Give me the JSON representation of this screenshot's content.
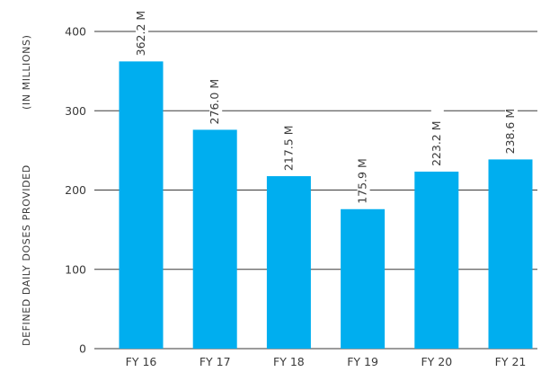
{
  "chart_data": {
    "type": "bar",
    "ylabel": "DEFINED DAILY DOSES PROVIDED",
    "ylabel_unit": "(IN MILLIONS)",
    "categories": [
      "FY 16",
      "FY 17",
      "FY 18",
      "FY 19",
      "FY 20",
      "FY 21"
    ],
    "values": [
      362.2,
      276.0,
      217.5,
      175.9,
      223.2,
      238.6
    ],
    "data_labels": [
      "362.2 M",
      "276.0 M",
      "217.5 M",
      "175.9 M",
      "223.2 M",
      "238.6 M"
    ],
    "ylim": [
      0,
      400
    ],
    "yticks": [
      0,
      100,
      200,
      300,
      400
    ],
    "grid": "horizontal",
    "colors": {
      "bar": "#00aeef",
      "grid": "#3a3a3a",
      "text": "#3a3a3a"
    }
  }
}
